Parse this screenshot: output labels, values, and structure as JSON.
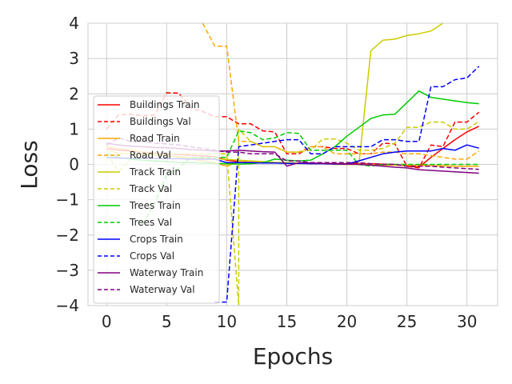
{
  "chart_data": {
    "type": "line",
    "title": "",
    "xlabel": "Epochs",
    "ylabel": "Loss",
    "xlim": [
      -1.55,
      32.55
    ],
    "ylim": [
      -4,
      4
    ],
    "xticks": [
      0,
      5,
      10,
      15,
      20,
      25,
      30
    ],
    "yticks": [
      -4,
      -3,
      -2,
      -1,
      0,
      1,
      2,
      3,
      4
    ],
    "xtick_labels": [
      "0",
      "5",
      "10",
      "15",
      "20",
      "25",
      "30"
    ],
    "ytick_labels": [
      "−4",
      "−3",
      "−2",
      "−1",
      "0",
      "1",
      "2",
      "3",
      "4"
    ],
    "grid": true,
    "legend_position": "lower-left",
    "series": [
      {
        "name": "Buildings Train",
        "color": "#ff0000",
        "dash": false,
        "x": [
          0,
          1,
          2,
          3,
          4,
          5,
          6,
          7,
          8,
          9,
          10,
          11,
          12,
          13,
          14,
          15,
          16,
          17,
          18,
          19,
          20,
          21,
          22,
          23,
          24,
          25,
          26,
          27,
          28,
          29,
          30,
          31
        ],
        "y": [
          0.45,
          0.4,
          0.38,
          0.35,
          0.32,
          0.3,
          0.28,
          0.26,
          0.24,
          0.22,
          0.12,
          0.08,
          0.06,
          0.05,
          0.05,
          0.04,
          0.04,
          0.03,
          0.03,
          0.02,
          0.02,
          0.02,
          0.02,
          0.01,
          0.0,
          -0.05,
          -0.08,
          0.2,
          0.45,
          0.7,
          0.92,
          1.08
        ]
      },
      {
        "name": "Buildings Val",
        "color": "#ff0000",
        "dash": true,
        "x": [
          0,
          1,
          2,
          3,
          4,
          5,
          6,
          7,
          8,
          9,
          10,
          11,
          12,
          13,
          14,
          15,
          16,
          17,
          18,
          19,
          20,
          21,
          22,
          23,
          24,
          25,
          26,
          27,
          28,
          29,
          30,
          31
        ],
        "y": [
          1.0,
          1.4,
          1.42,
          1.38,
          1.4,
          2.03,
          2.02,
          1.6,
          1.5,
          1.35,
          1.35,
          1.15,
          1.15,
          0.95,
          0.92,
          0.3,
          0.3,
          0.5,
          0.5,
          0.45,
          0.45,
          0.3,
          0.3,
          0.6,
          0.58,
          -0.05,
          -0.1,
          0.55,
          0.5,
          1.2,
          1.2,
          1.48
        ]
      },
      {
        "name": "Road Train",
        "color": "#ffa500",
        "dash": false,
        "x": [
          0,
          1,
          2,
          3,
          4,
          5,
          6,
          7,
          8,
          9,
          10,
          11,
          12,
          13,
          14,
          15,
          16,
          17,
          18,
          19,
          20,
          21,
          22,
          23,
          24,
          25,
          26,
          27,
          28,
          29,
          30,
          31
        ],
        "y": [
          0.5,
          0.45,
          0.4,
          0.35,
          0.3,
          0.25,
          0.2,
          0.15,
          0.1,
          0.05,
          -0.05,
          0.08,
          0.06,
          0.05,
          0.05,
          0.03,
          0.03,
          0.02,
          0.02,
          0.0,
          0.0,
          0.0,
          0.0,
          -0.02,
          -0.02,
          -0.03,
          -0.03,
          -0.04,
          -0.04,
          -0.05,
          -0.05,
          -0.05
        ]
      },
      {
        "name": "Road Val",
        "color": "#ffa500",
        "dash": true,
        "x": [
          8,
          9,
          10,
          11,
          12,
          13,
          14,
          15,
          16,
          17,
          18,
          19,
          20,
          21,
          22,
          23,
          24,
          25,
          26,
          27,
          28,
          29,
          30,
          31
        ],
        "y": [
          4.0,
          3.35,
          3.35,
          0.65,
          0.65,
          0.5,
          0.5,
          0.35,
          0.35,
          0.5,
          0.5,
          0.3,
          0.3,
          0.3,
          0.3,
          0.35,
          0.35,
          0.3,
          0.3,
          0.25,
          0.2,
          0.15,
          0.15,
          0.38
        ]
      },
      {
        "name": "Track Train",
        "color": "#cccc00",
        "dash": false,
        "x": [
          0,
          1,
          2,
          3,
          4,
          5,
          6,
          7,
          8,
          9,
          10,
          11,
          12,
          13,
          14,
          15,
          16,
          17,
          18,
          19,
          20,
          21,
          22,
          23,
          24,
          25,
          26,
          27,
          28
        ],
        "y": [
          0.4,
          0.32,
          0.3,
          0.28,
          0.26,
          0.24,
          0.22,
          0.2,
          0.18,
          0.16,
          0.14,
          0.12,
          0.1,
          0.08,
          0.06,
          0.05,
          0.04,
          0.03,
          0.02,
          0.01,
          0.0,
          0.0,
          3.22,
          3.52,
          3.55,
          3.65,
          3.7,
          3.78,
          4.0
        ]
      },
      {
        "name": "Track Val",
        "color": "#cccc00",
        "dash": true,
        "x": [
          0,
          1,
          2,
          3,
          4,
          5,
          6,
          7,
          8,
          9,
          10,
          11,
          11,
          12,
          13,
          14,
          15,
          16,
          17,
          18,
          19,
          20,
          21,
          22,
          23,
          24,
          25,
          26,
          27,
          28,
          29,
          30,
          31
        ],
        "y": [
          0.3,
          -0.2,
          0.15,
          0.3,
          0.3,
          0.3,
          0.3,
          0.3,
          0.3,
          0.3,
          0.3,
          -4,
          1.0,
          0.65,
          0.5,
          0.5,
          0.35,
          0.35,
          0.4,
          0.72,
          0.72,
          0.6,
          0.4,
          0.4,
          0.45,
          0.6,
          1.05,
          1.05,
          1.2,
          1.2,
          1.0,
          1.0,
          1.22
        ]
      },
      {
        "name": "Trees Train",
        "color": "#00cc00",
        "dash": false,
        "x": [
          0,
          1,
          2,
          3,
          4,
          5,
          6,
          7,
          8,
          9,
          10,
          11,
          12,
          13,
          14,
          15,
          16,
          17,
          18,
          19,
          20,
          21,
          22,
          23,
          24,
          25,
          26,
          27,
          28,
          29,
          30,
          31
        ],
        "y": [
          0.3,
          0.2,
          0.15,
          0.12,
          0.1,
          0.08,
          0.06,
          0.05,
          0.04,
          0.03,
          0.02,
          0.01,
          0.02,
          0.05,
          0.15,
          0.12,
          0.1,
          0.12,
          0.3,
          0.5,
          0.8,
          1.05,
          1.3,
          1.4,
          1.42,
          1.75,
          2.08,
          1.9,
          1.85,
          1.8,
          1.75,
          1.72
        ]
      },
      {
        "name": "Trees Val",
        "color": "#00cc00",
        "dash": true,
        "x": [
          3,
          4,
          5,
          6,
          7,
          8,
          9,
          10,
          11,
          12,
          13,
          14,
          15,
          16,
          17,
          18,
          19,
          20,
          21,
          22,
          23,
          24,
          25,
          26,
          27,
          28,
          29,
          30,
          31
        ],
        "y": [
          -1.7,
          -1.1,
          -0.3,
          -0.1,
          0.2,
          0.2,
          0.2,
          0.2,
          0.95,
          0.9,
          0.7,
          0.75,
          0.9,
          0.88,
          0.4,
          0.4,
          0.4,
          0.4,
          0.0,
          -0.05,
          0.0,
          0.0,
          0.0,
          0.0,
          0.0,
          0.0,
          0.0,
          0.0,
          0.0
        ]
      },
      {
        "name": "Crops Train",
        "color": "#0000ff",
        "dash": false,
        "x": [
          0,
          1,
          2,
          3,
          4,
          5,
          6,
          7,
          8,
          9,
          10,
          11,
          12,
          13,
          14,
          15,
          16,
          17,
          18,
          19,
          20,
          21,
          22,
          23,
          24,
          25,
          26,
          27,
          28,
          29,
          30,
          31
        ],
        "y": [
          0.2,
          0.18,
          0.18,
          0.18,
          0.17,
          0.16,
          0.16,
          0.15,
          0.15,
          0.15,
          0.05,
          0.05,
          0.05,
          0.04,
          0.04,
          0.03,
          0.03,
          0.02,
          0.02,
          0.01,
          0.01,
          0.1,
          0.2,
          0.3,
          0.35,
          0.38,
          0.38,
          0.38,
          0.45,
          0.4,
          0.55,
          0.46
        ]
      },
      {
        "name": "Crops Val",
        "color": "#0000ff",
        "dash": true,
        "x": [
          9,
          10,
          11,
          12,
          13,
          14,
          15,
          16,
          17,
          18,
          19,
          20,
          21,
          22,
          23,
          24,
          25,
          26,
          27,
          28,
          29,
          30,
          31
        ],
        "y": [
          -3.9,
          -3.9,
          0.5,
          0.55,
          0.6,
          0.65,
          0.7,
          0.7,
          0.3,
          0.3,
          0.5,
          0.5,
          0.5,
          0.5,
          0.7,
          0.7,
          0.65,
          0.65,
          2.2,
          2.2,
          2.4,
          2.45,
          2.78
        ]
      },
      {
        "name": "Waterway Train",
        "color": "#800080",
        "dash": false,
        "x": [
          0,
          1,
          2,
          3,
          4,
          5,
          6,
          7,
          8,
          9,
          10,
          11,
          12,
          13,
          14,
          15,
          16,
          17,
          18,
          19,
          20,
          21,
          22,
          23,
          24,
          25,
          26,
          27,
          28,
          29,
          30,
          31
        ],
        "y": [
          0.6,
          0.55,
          0.52,
          0.5,
          0.48,
          0.47,
          0.45,
          0.42,
          0.4,
          0.38,
          0.38,
          0.4,
          0.38,
          0.36,
          0.35,
          -0.05,
          0.05,
          0.04,
          0.03,
          0.02,
          0.01,
          0.0,
          -0.02,
          -0.05,
          -0.08,
          -0.1,
          -0.15,
          -0.17,
          -0.19,
          -0.21,
          -0.23,
          -0.25
        ]
      },
      {
        "name": "Waterway Val",
        "color": "#800080",
        "dash": true,
        "x": [
          0,
          1,
          2,
          3,
          4,
          5,
          6,
          7,
          8,
          9,
          10,
          11,
          12,
          13,
          14,
          15,
          16,
          17,
          18,
          19,
          20,
          21,
          22,
          23,
          24,
          25,
          26,
          27,
          28,
          29,
          30,
          31
        ],
        "y": [
          0.55,
          0.75,
          0.65,
          0.65,
          0.6,
          0.58,
          0.55,
          0.5,
          0.45,
          0.4,
          0.35,
          0.35,
          0.3,
          0.3,
          0.3,
          0.1,
          0.1,
          0.05,
          0.05,
          0.05,
          0.05,
          0.05,
          0.02,
          0.0,
          0.0,
          -0.05,
          -0.05,
          -0.05,
          -0.08,
          -0.1,
          -0.12,
          -0.14
        ]
      }
    ]
  }
}
